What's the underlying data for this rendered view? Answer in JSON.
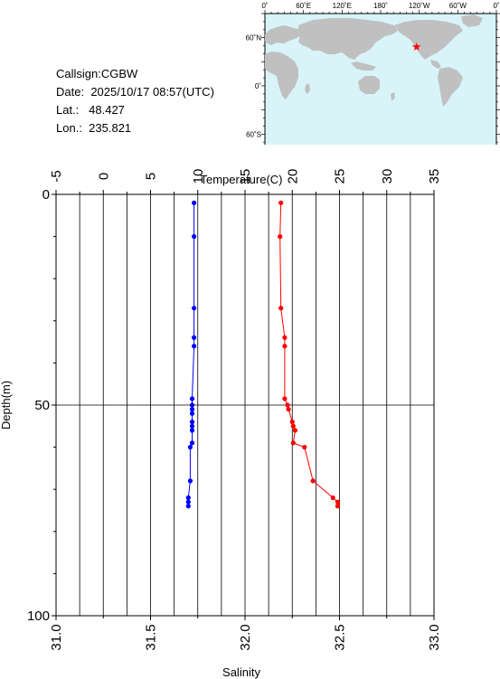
{
  "station": {
    "callsign_label": "Callsign:",
    "callsign": "CGBW",
    "date_label": "Date:",
    "date": "2025/10/17 08:57(UTC)",
    "lat_label": "Lat.:",
    "lat": "48.427",
    "lon_label": "Lon.:",
    "lon": "235.821"
  },
  "map": {
    "top_labels": [
      "0˚",
      "60˚E",
      "120˚E",
      "180˚",
      "120˚W",
      "60˚W",
      "0˚"
    ],
    "left_labels": [
      "60˚N",
      "0˚",
      "60˚S"
    ],
    "ocean_color": "#d8f4f9",
    "land_color": "#c0c0c0",
    "marker_color": "#ff0000",
    "marker": {
      "lon": 235.821,
      "lat": 48.427
    }
  },
  "chart_data": {
    "type": "line",
    "temperature_axis": {
      "label": "Temperature(C)",
      "range": [
        -5,
        35
      ],
      "ticks": [
        "-5",
        "0",
        "5",
        "10",
        "15",
        "20",
        "25",
        "30",
        "35"
      ]
    },
    "salinity_axis": {
      "label": "Salinity",
      "range": [
        31.0,
        33.0
      ],
      "ticks": [
        "31.0",
        "31.5",
        "32.0",
        "32.5",
        "33.0"
      ]
    },
    "depth_axis": {
      "label": "Depth(m)",
      "range": [
        0,
        100
      ],
      "ticks": [
        "0",
        "50",
        "100"
      ],
      "inverted": true
    },
    "grid": true,
    "series": [
      {
        "axis": "temperature",
        "color": "#ff0000",
        "points": [
          [
            18.8,
            2
          ],
          [
            18.7,
            10
          ],
          [
            18.8,
            27
          ],
          [
            19.2,
            34
          ],
          [
            19.2,
            36
          ],
          [
            19.2,
            48.5
          ],
          [
            19.5,
            50
          ],
          [
            19.6,
            51
          ],
          [
            20.0,
            54
          ],
          [
            20.1,
            55
          ],
          [
            20.3,
            56
          ],
          [
            20.1,
            59
          ],
          [
            21.3,
            60
          ],
          [
            22.2,
            68
          ],
          [
            24.3,
            72
          ],
          [
            24.8,
            73
          ],
          [
            24.8,
            74
          ]
        ]
      },
      {
        "axis": "salinity",
        "color": "#0000ff",
        "points": [
          [
            31.73,
            2
          ],
          [
            31.73,
            10
          ],
          [
            31.73,
            27
          ],
          [
            31.73,
            34
          ],
          [
            31.73,
            36
          ],
          [
            31.72,
            48.5
          ],
          [
            31.72,
            50
          ],
          [
            31.72,
            51
          ],
          [
            31.72,
            52
          ],
          [
            31.72,
            54
          ],
          [
            31.72,
            55
          ],
          [
            31.72,
            56
          ],
          [
            31.72,
            59
          ],
          [
            31.71,
            60
          ],
          [
            31.71,
            68
          ],
          [
            31.7,
            72
          ],
          [
            31.7,
            73
          ],
          [
            31.7,
            74
          ]
        ]
      }
    ]
  }
}
